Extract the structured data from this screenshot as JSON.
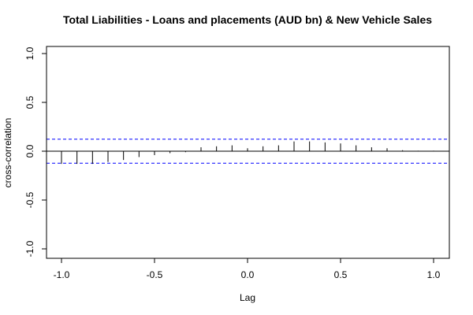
{
  "chart_data": {
    "type": "bar",
    "title": "Total Liabilities - Loans and placements (AUD bn) & New Vehicle Sales",
    "xlabel": "Lag",
    "ylabel": "cross-correlation",
    "xlim": [
      -1.0,
      1.0
    ],
    "ylim": [
      -1.0,
      1.0
    ],
    "x_ticks": [
      "-1.0",
      "-0.5",
      "0.0",
      "0.5",
      "1.0"
    ],
    "y_ticks": [
      "-1.0",
      "-0.5",
      "0.0",
      "0.5",
      "1.0"
    ],
    "lags": [
      -1.0,
      -0.9167,
      -0.8333,
      -0.75,
      -0.6667,
      -0.5833,
      -0.5,
      -0.4167,
      -0.3333,
      -0.25,
      -0.1667,
      -0.0833,
      0.0,
      0.0833,
      0.1667,
      0.25,
      0.3333,
      0.4167,
      0.5,
      0.5833,
      0.6667,
      0.75,
      0.8333,
      0.9167,
      1.0
    ],
    "values": [
      -0.13,
      -0.13,
      -0.13,
      -0.11,
      -0.09,
      -0.06,
      -0.04,
      -0.02,
      -0.01,
      0.04,
      0.05,
      0.06,
      0.03,
      0.05,
      0.06,
      0.1,
      0.1,
      0.09,
      0.08,
      0.06,
      0.04,
      0.03,
      0.01,
      0.005,
      0.005
    ],
    "confidence_bound": 0.123,
    "colors": {
      "bars": "#000000",
      "confidence_lines": "#0000ff",
      "zero_line": "#000000",
      "frame": "#000000"
    }
  }
}
